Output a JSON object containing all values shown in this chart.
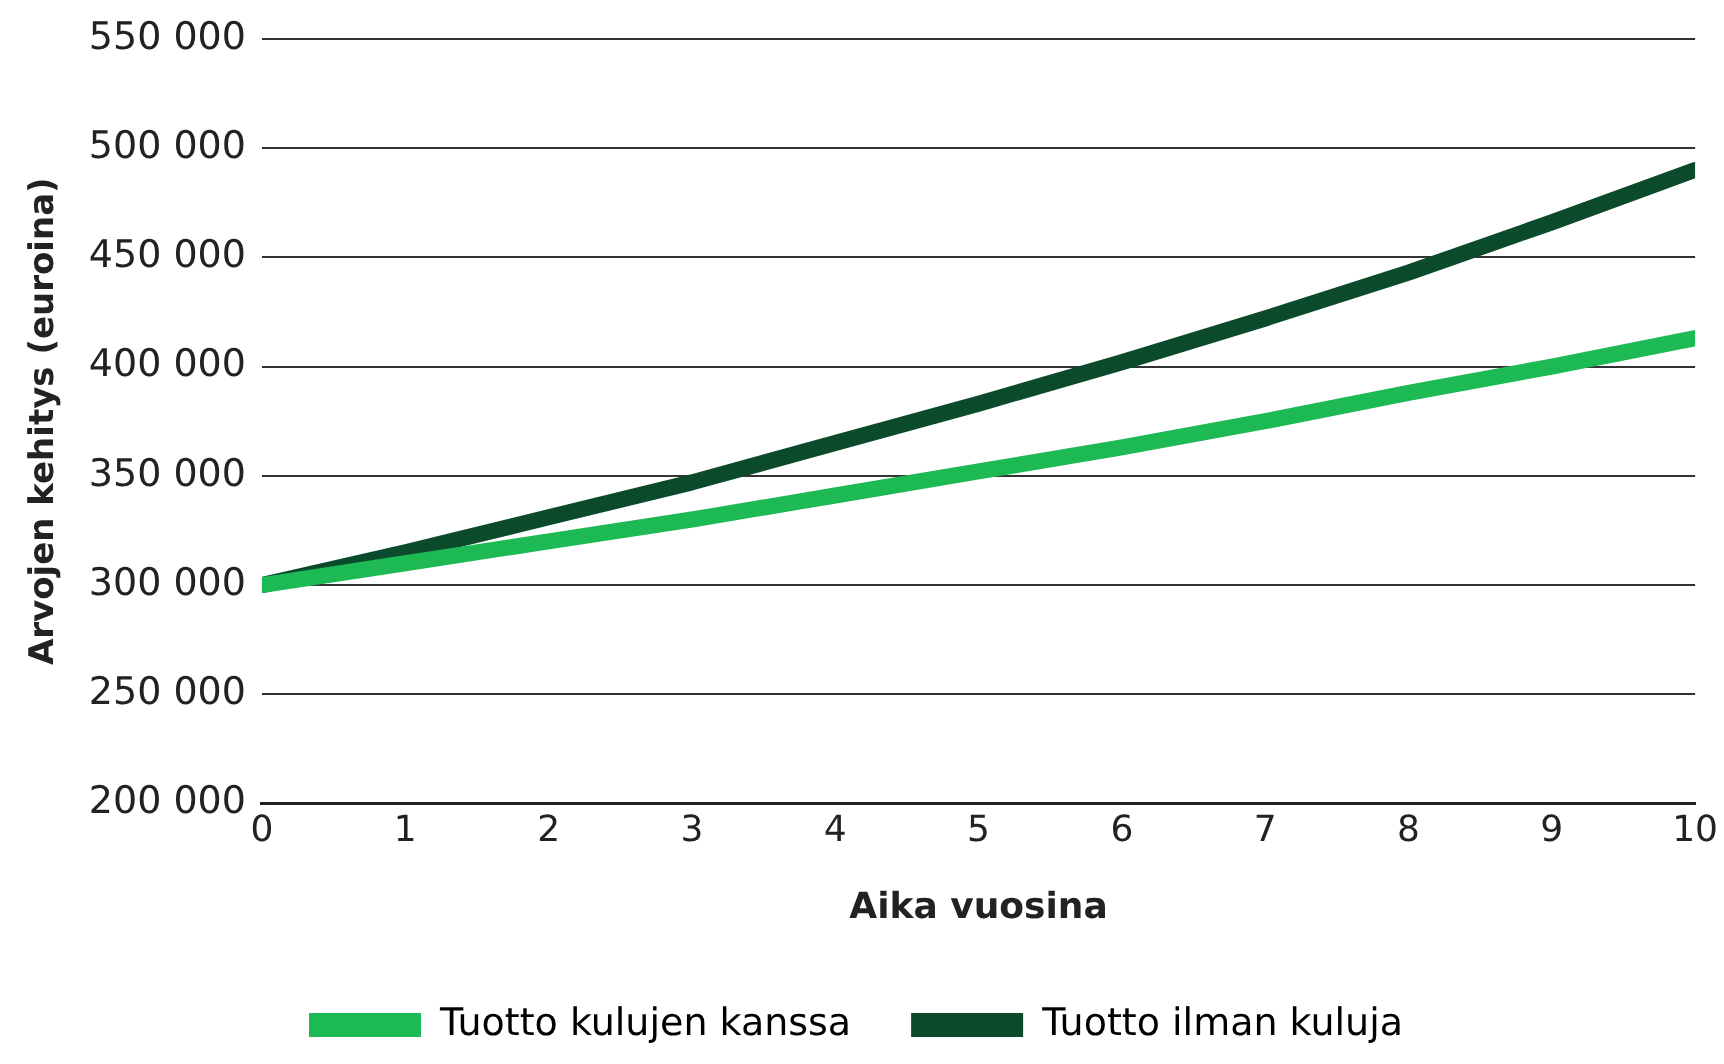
{
  "chart_data": {
    "type": "line",
    "xlabel": "Aika vuosina",
    "ylabel": "Arvojen kehitys (euroina)",
    "x": [
      0,
      1,
      2,
      3,
      4,
      5,
      6,
      7,
      8,
      9,
      10
    ],
    "series": [
      {
        "name": "Tuotto kulujen kanssa",
        "color": "#1db954",
        "values": [
          300000,
          310000,
          320000,
          330000,
          341000,
          352000,
          363000,
          375000,
          388000,
          400000,
          413000
        ]
      },
      {
        "name": "Tuotto ilman kuluja",
        "color": "#0b4a2a",
        "values": [
          300000,
          315000,
          331000,
          347000,
          365000,
          383000,
          402000,
          422000,
          443000,
          466000,
          490000
        ]
      }
    ],
    "xlim": [
      0,
      10
    ],
    "xticks": [
      0,
      1,
      2,
      3,
      4,
      5,
      6,
      7,
      8,
      9,
      10
    ],
    "ylim": [
      200000,
      550000
    ],
    "yticks": [
      {
        "value": 200000,
        "label": "200 000"
      },
      {
        "value": 250000,
        "label": "250 000"
      },
      {
        "value": 300000,
        "label": "300 000"
      },
      {
        "value": 350000,
        "label": "350 000"
      },
      {
        "value": 400000,
        "label": "400 000"
      },
      {
        "value": 450000,
        "label": "450 000"
      },
      {
        "value": 500000,
        "label": "500 000"
      },
      {
        "value": 550000,
        "label": "550 000"
      }
    ],
    "grid": "y",
    "legend": "bottom",
    "marker": "none",
    "line_style": "solid"
  }
}
